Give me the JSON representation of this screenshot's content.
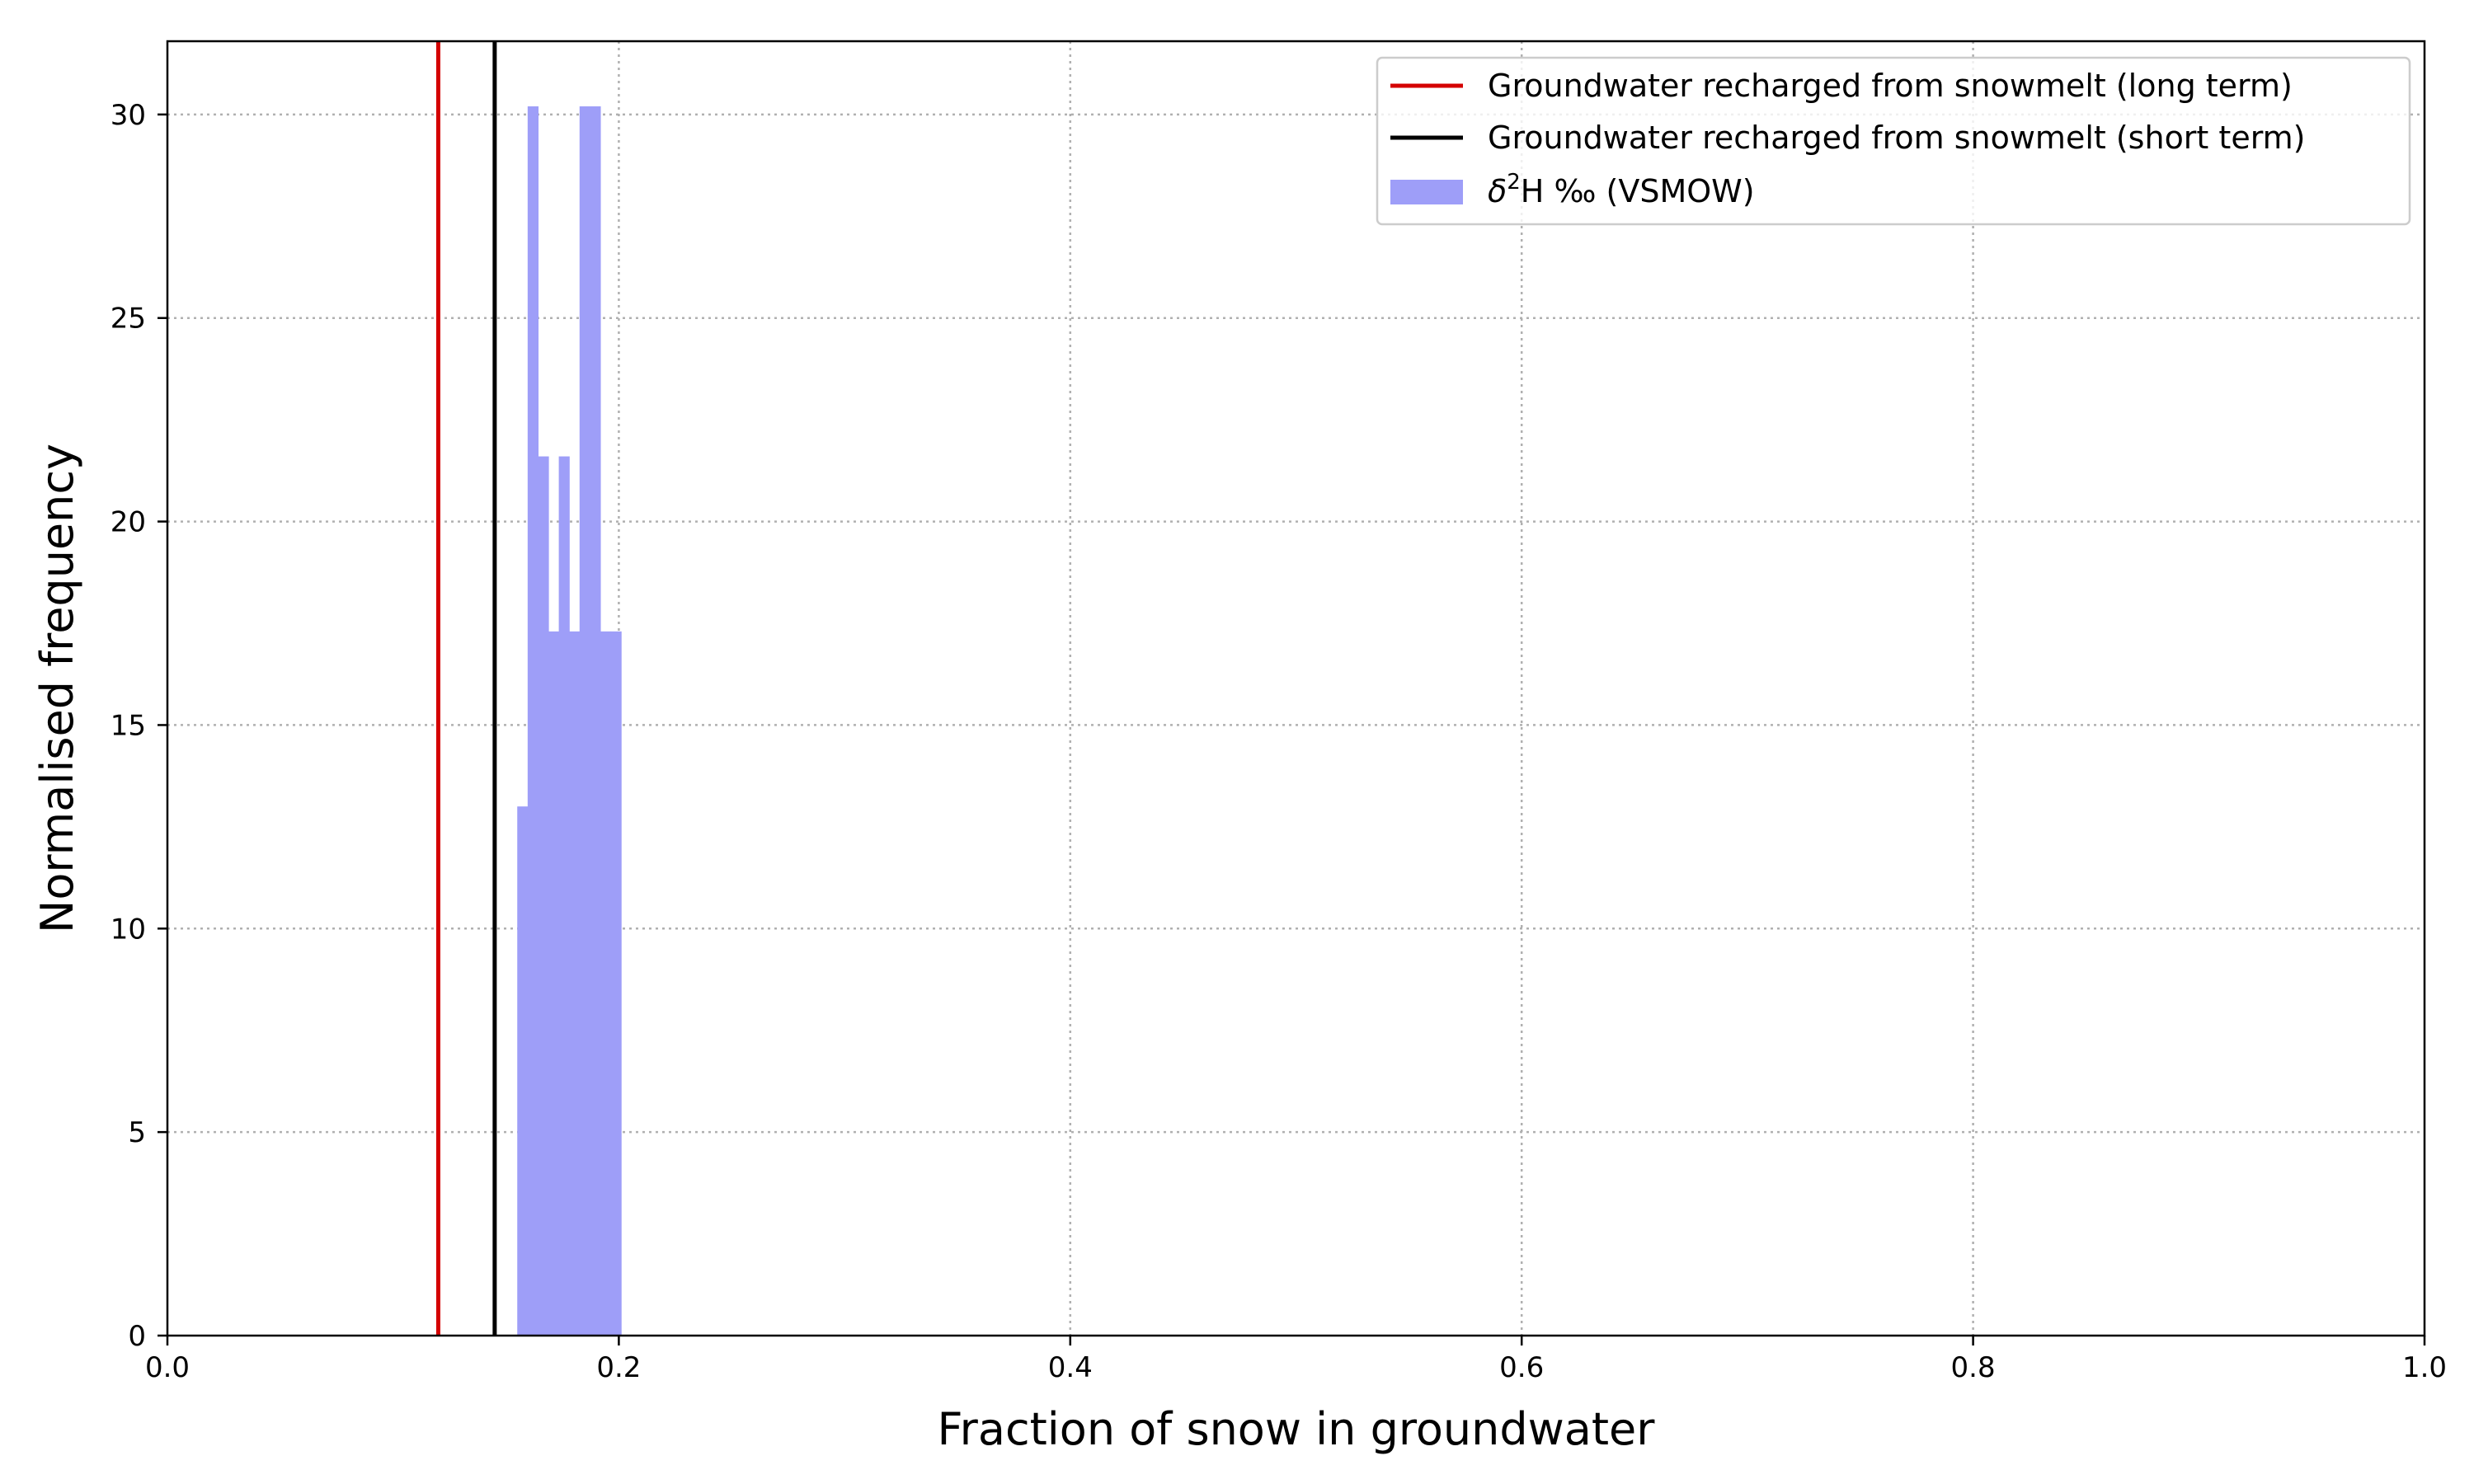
{
  "chart_data": {
    "type": "bar",
    "xlabel": "Fraction of snow in groundwater",
    "ylabel": "Normalised frequency",
    "xlim": [
      0.0,
      1.0
    ],
    "ylim": [
      0,
      31.8
    ],
    "x_ticks": [
      0.0,
      0.2,
      0.4,
      0.6,
      0.8,
      1.0
    ],
    "x_tick_labels": [
      "0.0",
      "0.2",
      "0.4",
      "0.6",
      "0.8",
      "1.0"
    ],
    "y_ticks": [
      0,
      5,
      10,
      15,
      20,
      25,
      30
    ],
    "y_tick_labels": [
      "0",
      "5",
      "10",
      "15",
      "20",
      "25",
      "30"
    ],
    "grid": true,
    "legend_position": "top-right",
    "histogram": {
      "name": "δ²H ‰ (VSMOW)",
      "name_base": "δ",
      "name_sup": "2",
      "name_rest": "H ‰ (VSMOW)",
      "color": "#9e9ef8",
      "bins": [
        {
          "x0": 0.155,
          "x1": 0.1596,
          "value": 13.0
        },
        {
          "x0": 0.1596,
          "x1": 0.1642,
          "value": 30.2
        },
        {
          "x0": 0.1642,
          "x1": 0.1688,
          "value": 21.6
        },
        {
          "x0": 0.1688,
          "x1": 0.1734,
          "value": 17.3
        },
        {
          "x0": 0.1734,
          "x1": 0.178,
          "value": 21.6
        },
        {
          "x0": 0.178,
          "x1": 0.1826,
          "value": 17.3
        },
        {
          "x0": 0.1826,
          "x1": 0.1872,
          "value": 30.2
        },
        {
          "x0": 0.1872,
          "x1": 0.1918,
          "value": 30.2
        },
        {
          "x0": 0.1918,
          "x1": 0.1964,
          "value": 17.3
        },
        {
          "x0": 0.1964,
          "x1": 0.201,
          "value": 17.3
        }
      ]
    },
    "vlines": [
      {
        "name": "Groundwater recharged from snowmelt (long term)",
        "x": 0.12,
        "color": "#d40000"
      },
      {
        "name": "Groundwater recharged from snowmelt (short term)",
        "x": 0.145,
        "color": "#000000"
      }
    ]
  }
}
